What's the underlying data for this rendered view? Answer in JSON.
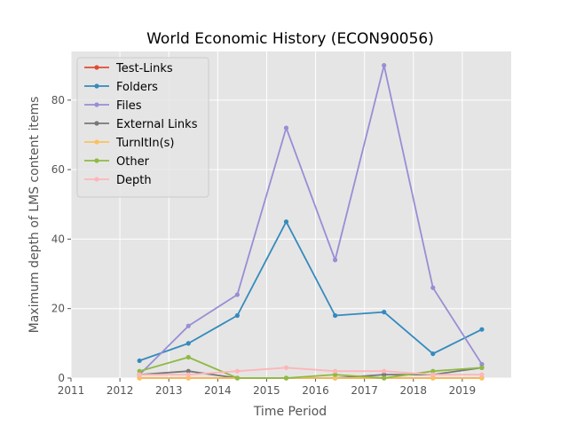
{
  "chart_data": {
    "type": "line",
    "title": "World Economic History (ECON90056)",
    "xlabel": "Time Period",
    "ylabel": "Maximum depth of LMS content items",
    "xlim": [
      2011,
      2020
    ],
    "ylim": [
      0,
      94
    ],
    "x_ticks": [
      2011,
      2012,
      2013,
      2014,
      2015,
      2016,
      2017,
      2018,
      2019
    ],
    "y_ticks": [
      0,
      20,
      40,
      60,
      80
    ],
    "grid": true,
    "legend_position": "top-left",
    "x": [
      2012.4,
      2013.4,
      2014.4,
      2015.4,
      2016.4,
      2017.4,
      2018.4,
      2019.4
    ],
    "series": [
      {
        "name": "Test-Links",
        "color": "#E24A33",
        "values": [
          0,
          0,
          0,
          0,
          0,
          0,
          0,
          0
        ]
      },
      {
        "name": "Folders",
        "color": "#348ABD",
        "values": [
          5,
          10,
          18,
          45,
          18,
          19,
          7,
          14
        ]
      },
      {
        "name": "Files",
        "color": "#988ED5",
        "values": [
          1,
          15,
          24,
          72,
          34,
          90,
          26,
          4
        ]
      },
      {
        "name": "External Links",
        "color": "#777777",
        "values": [
          1,
          2,
          0,
          0,
          0,
          1,
          1,
          3
        ]
      },
      {
        "name": "TurnItIn(s)",
        "color": "#FBC15E",
        "values": [
          0,
          0,
          0,
          0,
          0,
          0,
          0,
          0
        ]
      },
      {
        "name": "Other",
        "color": "#8EBA42",
        "values": [
          2,
          6,
          0,
          0,
          1,
          0,
          2,
          3
        ]
      },
      {
        "name": "Depth",
        "color": "#FFB5B8",
        "values": [
          1,
          1,
          2,
          3,
          2,
          2,
          1,
          1
        ]
      }
    ]
  }
}
